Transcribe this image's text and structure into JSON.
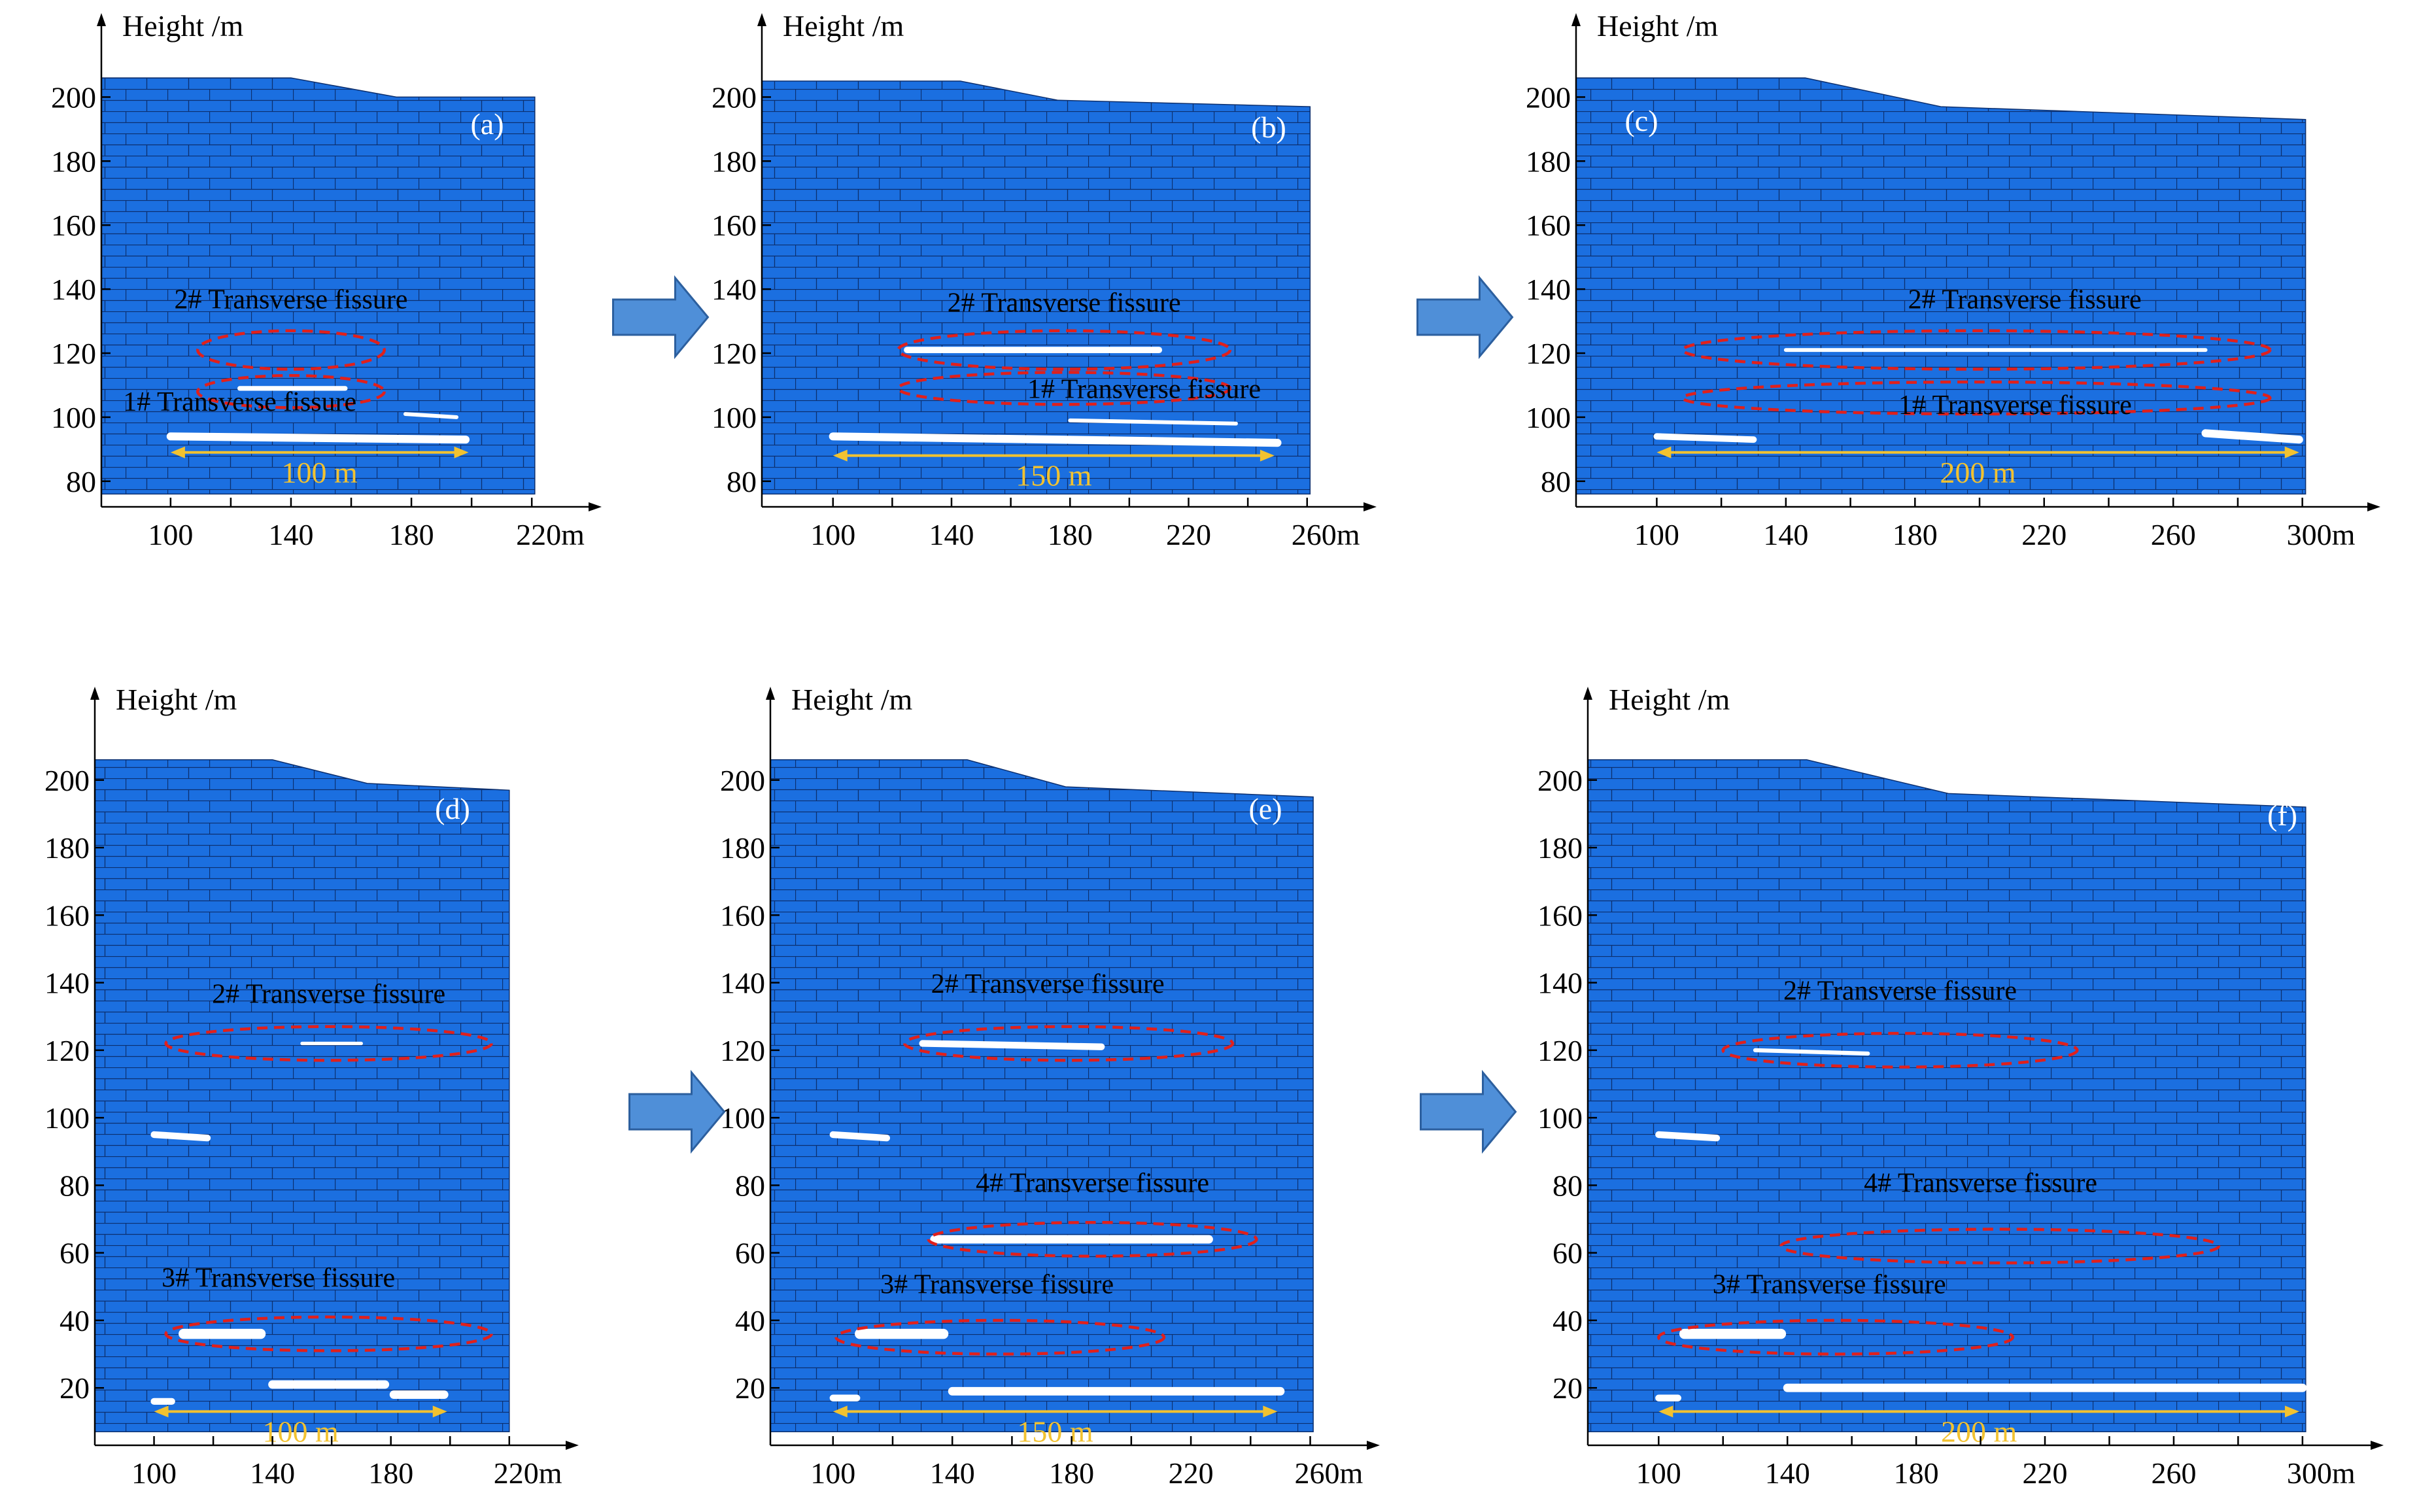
{
  "figure": {
    "arrow_color": "#4f8fd8",
    "rock_color": "#1b6fe0",
    "fissure_color": "#e0201c",
    "span_color": "#f2c230",
    "gap_color": "#ffffff"
  },
  "chart_data": [
    {
      "id": "a",
      "type": "scatter",
      "title": "(a)",
      "ylabel": "Height /m",
      "xlabel": "",
      "x_ticks": [
        {
          "v": 100,
          "t": "100"
        },
        {
          "v": 140,
          "t": "140"
        },
        {
          "v": 180,
          "t": "180"
        },
        {
          "v": 220,
          "t": "220m"
        }
      ],
      "y_ticks": [
        {
          "v": 80,
          "t": "80"
        },
        {
          "v": 100,
          "t": "100"
        },
        {
          "v": 120,
          "t": "120"
        },
        {
          "v": 140,
          "t": "140"
        },
        {
          "v": 160,
          "t": "160"
        },
        {
          "v": 180,
          "t": "180"
        },
        {
          "v": 200,
          "t": "200"
        }
      ],
      "xlim": [
        77,
        228
      ],
      "ylim": [
        72,
        215
      ],
      "model_x": [
        77,
        221
      ],
      "model_bottom": 76,
      "surface": [
        [
          77,
          206
        ],
        [
          140,
          206
        ],
        [
          175,
          200
        ],
        [
          221,
          200
        ]
      ],
      "fissures": [
        {
          "text": "2# Transverse fissure",
          "cx": 140,
          "cy": 121,
          "rx": 31,
          "ry": 6,
          "label_x": 140,
          "label_y": 134
        },
        {
          "text": "1# Transverse fissure",
          "cx": 140,
          "cy": 108,
          "rx": 31,
          "ry": 5,
          "label_x": 123,
          "label_y": 102
        }
      ],
      "gaps": [
        [
          123,
          109,
          158,
          109,
          1.5
        ],
        [
          100,
          94,
          198,
          93,
          2.5
        ],
        [
          178,
          101,
          195,
          100,
          1.2
        ]
      ],
      "span": {
        "x1": 100,
        "x2": 199,
        "y": 89,
        "text": "100 m"
      }
    },
    {
      "id": "b",
      "type": "scatter",
      "title": "(b)",
      "ylabel": "Height /m",
      "xlabel": "",
      "x_ticks": [
        {
          "v": 100,
          "t": "100"
        },
        {
          "v": 140,
          "t": "140"
        },
        {
          "v": 180,
          "t": "180"
        },
        {
          "v": 220,
          "t": "220"
        },
        {
          "v": 260,
          "t": "260m"
        }
      ],
      "y_ticks": [
        {
          "v": 80,
          "t": "80"
        },
        {
          "v": 100,
          "t": "100"
        },
        {
          "v": 120,
          "t": "120"
        },
        {
          "v": 140,
          "t": "140"
        },
        {
          "v": 160,
          "t": "160"
        },
        {
          "v": 180,
          "t": "180"
        },
        {
          "v": 200,
          "t": "200"
        }
      ],
      "xlim": [
        76,
        268
      ],
      "ylim": [
        72,
        215
      ],
      "model_x": [
        76,
        261
      ],
      "model_bottom": 76,
      "surface": [
        [
          76,
          205
        ],
        [
          143,
          205
        ],
        [
          176,
          199
        ],
        [
          261,
          197
        ]
      ],
      "fissures": [
        {
          "text": "2# Transverse fissure",
          "cx": 178,
          "cy": 121,
          "rx": 56,
          "ry": 6,
          "label_x": 178,
          "label_y": 133
        },
        {
          "text": "1# Transverse fissure",
          "cx": 178,
          "cy": 109,
          "rx": 56,
          "ry": 5,
          "label_x": 205,
          "label_y": 106
        }
      ],
      "gaps": [
        [
          125,
          121,
          210,
          121,
          2
        ],
        [
          100,
          94,
          250,
          92,
          2.5
        ],
        [
          180,
          99,
          236,
          98,
          1.2
        ]
      ],
      "span": {
        "x1": 100,
        "x2": 249,
        "y": 88,
        "text": "150 m"
      }
    },
    {
      "id": "c",
      "type": "scatter",
      "title": "(c)",
      "ylabel": "Height /m",
      "xlabel": "",
      "x_ticks": [
        {
          "v": 100,
          "t": "100"
        },
        {
          "v": 140,
          "t": "140"
        },
        {
          "v": 180,
          "t": "180"
        },
        {
          "v": 220,
          "t": "220"
        },
        {
          "v": 260,
          "t": "260"
        },
        {
          "v": 300,
          "t": "300m"
        }
      ],
      "y_ticks": [
        {
          "v": 80,
          "t": "80"
        },
        {
          "v": 100,
          "t": "100"
        },
        {
          "v": 120,
          "t": "120"
        },
        {
          "v": 140,
          "t": "140"
        },
        {
          "v": 160,
          "t": "160"
        },
        {
          "v": 180,
          "t": "180"
        },
        {
          "v": 200,
          "t": "200"
        }
      ],
      "xlim": [
        75,
        310
      ],
      "ylim": [
        72,
        215
      ],
      "model_x": [
        75,
        301
      ],
      "model_bottom": 76,
      "surface": [
        [
          75,
          206
        ],
        [
          146,
          206
        ],
        [
          188,
          197
        ],
        [
          301,
          193
        ]
      ],
      "fissures": [
        {
          "text": "2# Transverse fissure",
          "cx": 199,
          "cy": 121,
          "rx": 91,
          "ry": 6,
          "label_x": 214,
          "label_y": 134
        },
        {
          "text": "1# Transverse fissure",
          "cx": 199,
          "cy": 106,
          "rx": 91,
          "ry": 5,
          "label_x": 211,
          "label_y": 101
        }
      ],
      "gaps": [
        [
          140,
          121,
          270,
          121,
          1.2
        ],
        [
          100,
          94,
          130,
          93,
          2
        ],
        [
          270,
          95,
          299,
          93,
          2.5
        ]
      ],
      "span": {
        "x1": 100,
        "x2": 299,
        "y": 89,
        "text": "200 m"
      }
    },
    {
      "id": "d",
      "type": "scatter",
      "title": "(d)",
      "ylabel": "Height /m",
      "xlabel": "",
      "x_ticks": [
        {
          "v": 100,
          "t": "100"
        },
        {
          "v": 140,
          "t": "140"
        },
        {
          "v": 180,
          "t": "180"
        },
        {
          "v": 220,
          "t": "220m"
        }
      ],
      "y_ticks": [
        {
          "v": 20,
          "t": "20"
        },
        {
          "v": 40,
          "t": "40"
        },
        {
          "v": 60,
          "t": "60"
        },
        {
          "v": 80,
          "t": "80"
        },
        {
          "v": 100,
          "t": "100"
        },
        {
          "v": 120,
          "t": "120"
        },
        {
          "v": 140,
          "t": "140"
        },
        {
          "v": 160,
          "t": "160"
        },
        {
          "v": 180,
          "t": "180"
        },
        {
          "v": 200,
          "t": "200"
        }
      ],
      "xlim": [
        80,
        228
      ],
      "ylim": [
        3,
        217
      ],
      "model_x": [
        80,
        220
      ],
      "model_bottom": 7,
      "surface": [
        [
          80,
          206
        ],
        [
          140,
          206
        ],
        [
          172,
          199
        ],
        [
          220,
          197
        ]
      ],
      "fissures": [
        {
          "text": "2# Transverse fissure",
          "cx": 159,
          "cy": 122,
          "rx": 55,
          "ry": 5,
          "label_x": 159,
          "label_y": 134
        },
        {
          "text": "3# Transverse fissure",
          "cx": 159,
          "cy": 36,
          "rx": 55,
          "ry": 5,
          "label_x": 142,
          "label_y": 50
        }
      ],
      "gaps": [
        [
          150,
          122,
          170,
          122,
          1
        ],
        [
          100,
          95,
          118,
          94,
          2
        ],
        [
          110,
          36,
          136,
          36,
          3
        ],
        [
          140,
          21,
          178,
          21,
          2.5
        ],
        [
          181,
          18,
          198,
          18,
          2.5
        ],
        [
          100,
          16,
          106,
          16,
          2
        ]
      ],
      "span": {
        "x1": 100,
        "x2": 199,
        "y": 13,
        "text": "100 m"
      }
    },
    {
      "id": "e",
      "type": "scatter",
      "title": "(e)",
      "ylabel": "Height /m",
      "xlabel": "",
      "x_ticks": [
        {
          "v": 100,
          "t": "100"
        },
        {
          "v": 140,
          "t": "140"
        },
        {
          "v": 180,
          "t": "180"
        },
        {
          "v": 220,
          "t": "220"
        },
        {
          "v": 260,
          "t": "260m"
        }
      ],
      "y_ticks": [
        {
          "v": 20,
          "t": "20"
        },
        {
          "v": 40,
          "t": "40"
        },
        {
          "v": 60,
          "t": "60"
        },
        {
          "v": 80,
          "t": "80"
        },
        {
          "v": 100,
          "t": "100"
        },
        {
          "v": 120,
          "t": "120"
        },
        {
          "v": 140,
          "t": "140"
        },
        {
          "v": 160,
          "t": "160"
        },
        {
          "v": 180,
          "t": "180"
        },
        {
          "v": 200,
          "t": "200"
        }
      ],
      "xlim": [
        79,
        268
      ],
      "ylim": [
        3,
        217
      ],
      "model_x": [
        79,
        261
      ],
      "model_bottom": 7,
      "surface": [
        [
          79,
          206
        ],
        [
          145,
          206
        ],
        [
          178,
          198
        ],
        [
          261,
          195
        ]
      ],
      "fissures": [
        {
          "text": "2# Transverse fissure",
          "cx": 179,
          "cy": 122,
          "rx": 55,
          "ry": 5,
          "label_x": 172,
          "label_y": 137
        },
        {
          "text": "4# Transverse fissure",
          "cx": 187,
          "cy": 64,
          "rx": 55,
          "ry": 5,
          "label_x": 187,
          "label_y": 78
        },
        {
          "text": "3# Transverse fissure",
          "cx": 156,
          "cy": 35,
          "rx": 55,
          "ry": 5,
          "label_x": 155,
          "label_y": 48
        }
      ],
      "gaps": [
        [
          130,
          122,
          190,
          121,
          2
        ],
        [
          100,
          95,
          118,
          94,
          2
        ],
        [
          134,
          64,
          226,
          64,
          2.5
        ],
        [
          109,
          36,
          137,
          36,
          3
        ],
        [
          140,
          19,
          250,
          19,
          2.5
        ],
        [
          100,
          17,
          108,
          17,
          2
        ]
      ],
      "span": {
        "x1": 100,
        "x2": 249,
        "y": 13,
        "text": "150 m"
      }
    },
    {
      "id": "f",
      "type": "scatter",
      "title": "(f)",
      "ylabel": "Height /m",
      "xlabel": "",
      "x_ticks": [
        {
          "v": 100,
          "t": "100"
        },
        {
          "v": 140,
          "t": "140"
        },
        {
          "v": 180,
          "t": "180"
        },
        {
          "v": 220,
          "t": "220"
        },
        {
          "v": 260,
          "t": "260"
        },
        {
          "v": 300,
          "t": "300m"
        }
      ],
      "y_ticks": [
        {
          "v": 20,
          "t": "20"
        },
        {
          "v": 40,
          "t": "40"
        },
        {
          "v": 60,
          "t": "60"
        },
        {
          "v": 80,
          "t": "80"
        },
        {
          "v": 100,
          "t": "100"
        },
        {
          "v": 120,
          "t": "120"
        },
        {
          "v": 140,
          "t": "140"
        },
        {
          "v": 160,
          "t": "160"
        },
        {
          "v": 180,
          "t": "180"
        },
        {
          "v": 200,
          "t": "200"
        }
      ],
      "xlim": [
        78,
        311
      ],
      "ylim": [
        3,
        217
      ],
      "model_x": [
        78,
        301
      ],
      "model_bottom": 7,
      "surface": [
        [
          78,
          206
        ],
        [
          146,
          206
        ],
        [
          190,
          196
        ],
        [
          301,
          192
        ]
      ],
      "fissures": [
        {
          "text": "2# Transverse fissure",
          "cx": 175,
          "cy": 120,
          "rx": 55,
          "ry": 5,
          "label_x": 175,
          "label_y": 135
        },
        {
          "text": "4# Transverse fissure",
          "cx": 206,
          "cy": 62,
          "rx": 68,
          "ry": 5,
          "label_x": 200,
          "label_y": 78
        },
        {
          "text": "3# Transverse fissure",
          "cx": 155,
          "cy": 35,
          "rx": 55,
          "ry": 5,
          "label_x": 153,
          "label_y": 48
        }
      ],
      "gaps": [
        [
          130,
          120,
          165,
          119,
          1.2
        ],
        [
          100,
          95,
          118,
          94,
          2
        ],
        [
          108,
          36,
          138,
          36,
          3
        ],
        [
          140,
          20,
          300,
          20,
          2.5
        ],
        [
          100,
          17,
          106,
          17,
          2
        ]
      ],
      "span": {
        "x1": 100,
        "x2": 299,
        "y": 13,
        "text": "200 m"
      }
    }
  ]
}
